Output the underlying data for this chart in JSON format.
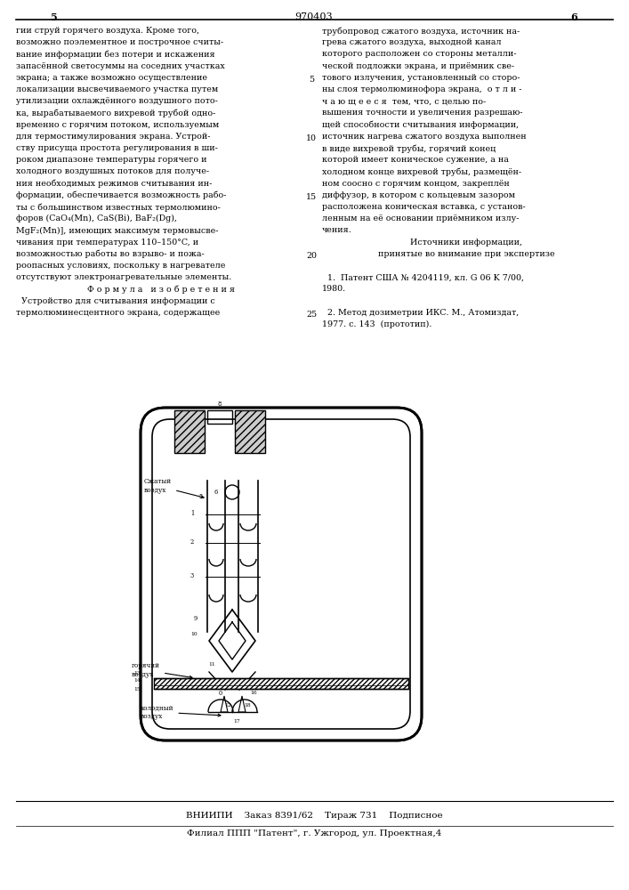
{
  "page_number_left": "5",
  "page_number_center": "970403",
  "page_number_right": "6",
  "left_col_lines": [
    "гии струй горячего воздуха. Кроме того,",
    "возможно поэлементное и построчное считы-",
    "вание информации без потери и искажения",
    "запасённой светосуммы на соседних участках",
    "экрана; а также возможно осуществление",
    "локализации высвечиваемого участка путем",
    "утилизации охлаждённого воздушного пото-",
    "ка, вырабатываемого вихревой трубой одно-",
    "временно с горячим потоком, используемым",
    "для термостимулирования экрана. Устрой-",
    "ству присуща простота регулирования в ши-",
    "роком диапазоне температуры горячего и",
    "холодного воздушных потоков для получе-",
    "ния необходимых режимов считывания ин-",
    "формации, обеспечивается возможность рабо-",
    "ты с большинством известных термолюмино-",
    "форов (CaO₄(Mn), CaS(Bi), BaF₂(Dg),",
    "MgF₂(Mn)], имеющих максимум термовысве-",
    "чивания при температурах 110–150°C, и",
    "возможностью работы во взрыво- и пожа-",
    "роопасных условиях, поскольку в нагревателе",
    "отсутствуют электронагревательные элементы.",
    "    Ф о р м у л а   и з о б р е т е н и я",
    "  Устройство для считывания информации с",
    "термолюминесцентного экрана, содержащее"
  ],
  "right_col_lines": [
    "трубопровод сжатого воздуха, источник на-",
    "грева сжатого воздуха, выходной канал",
    "которого расположен со стороны металли-",
    "ческой подложки экрана, и приёмник све-",
    "тового излучения, установленный со сторо-",
    "ны слоя термолюминофора экрана,  о т л и -",
    "ч а ю щ е е с я  тем, что, с целью по-",
    "вышения точности и увеличения разрешаю-",
    "щей способности считывания информации,",
    "источник нагрева сжатого воздуха выполнен",
    "в виде вихревой трубы, горячий конец",
    "которой имеет коническое сужение, а на",
    "холодном конце вихревой трубы, размещён-",
    "ном соосно с горячим концом, закреплён",
    "диффузор, в котором с кольцевым зазором",
    "расположена коническая вставка, с установ-",
    "ленным на её основании приёмником излу-",
    "чения.",
    "        Источники информации,",
    "    принятые во внимание при экспертизе",
    "",
    "  1.  Патент США № 4204119, кл. G 06 K 7/00,",
    "1980.",
    "",
    "  2. Метод дозиметрии ИКС. М., Атомиздат,",
    "1977. с. 143  (прототип)."
  ],
  "line_numbers": [
    {
      "n": "5",
      "row": 4
    },
    {
      "n": "10",
      "row": 9
    },
    {
      "n": "15",
      "row": 14
    },
    {
      "n": "20",
      "row": 19
    },
    {
      "n": "25",
      "row": 24
    }
  ],
  "footer_line1": "ВНИИПИ    Заказ 8391/62    Тираж 731    Подписное",
  "footer_line2": "Филиал ППП \"Патент\", г. Ужгород, ул. Проектная,4",
  "bg_color": "#ffffff",
  "text_color": "#000000",
  "fs_body": 6.8,
  "fs_header": 8.0,
  "fs_footer": 7.5,
  "fs_label": 5.2,
  "fs_num": 4.8
}
